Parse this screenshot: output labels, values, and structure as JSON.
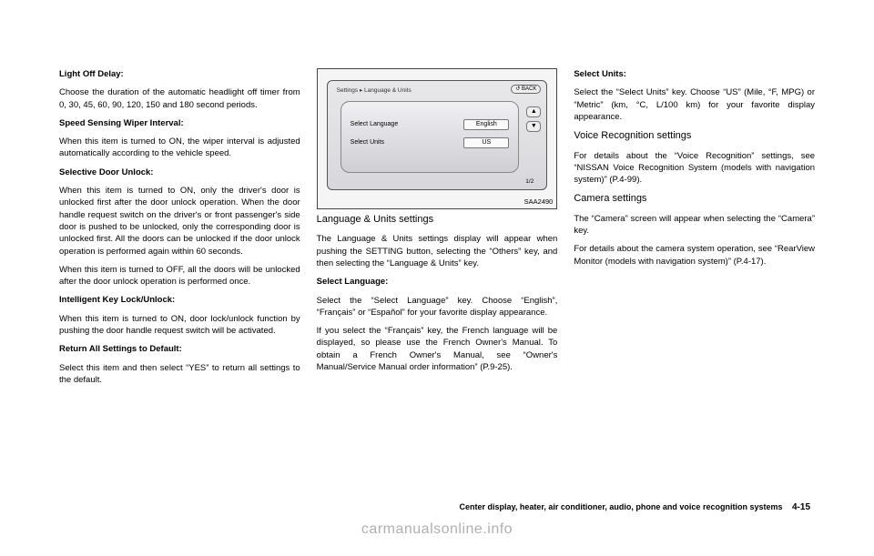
{
  "col1": {
    "h1": "Light Off Delay:",
    "p1": "Choose the duration of the automatic headlight off timer from 0, 30, 45, 60, 90, 120, 150 and 180 second periods.",
    "h2": "Speed Sensing Wiper Interval:",
    "p2": "When this item is turned to ON, the wiper interval is adjusted automatically according to the vehicle speed.",
    "h3": "Selective Door Unlock:",
    "p3": "When this item is turned to ON, only the driver's door is unlocked first after the door unlock operation. When the door handle request switch on the driver's or front passenger's side door is pushed to be unlocked, only the corresponding door is unlocked first. All the doors can be unlocked if the door unlock operation is performed again within 60 seconds.",
    "p4": "When this item is turned to OFF, all the doors will be unlocked after the door unlock operation is performed once.",
    "h4": "Intelligent Key Lock/Unlock:",
    "p5": "When this item is turned to ON, door lock/unlock function by pushing the door handle request switch will be activated.",
    "h5": "Return All Settings to Default:",
    "p6": "Select this item and then select “YES” to return all settings to the default."
  },
  "fig": {
    "crumb": "Settings ▸ Language & Units",
    "back": "↺ BACK",
    "row1_label": "Select Language",
    "row1_value": "English",
    "row2_label": "Select Units",
    "row2_value": "US",
    "up": "▲",
    "down": "▼",
    "page": "1/2",
    "id": "SAA2490"
  },
  "col2": {
    "h1": "Language & Units settings",
    "p1": "The Language & Units settings display will appear when pushing the SETTING button, selecting the “Others” key, and then selecting the “Language & Units” key.",
    "h2": "Select Language:",
    "p2": "Select the “Select Language” key. Choose “English”, “Français” or “Español” for your favorite display appearance.",
    "p3": "If you select the “Français” key, the French language will be displayed, so please use the French Owner's Manual. To obtain a French Owner's Manual, see “Owner's Manual/Service Manual order information” (P.9-25)."
  },
  "col3": {
    "h1": "Select Units:",
    "p1": "Select the “Select Units” key. Choose “US” (Mile, °F, MPG) or “Metric” (km, °C, L/100 km) for your favorite display appearance.",
    "h2": "Voice Recognition settings",
    "p2": "For details about the “Voice Recognition” settings, see “NISSAN Voice Recognition System (models with navigation system)” (P.4-99).",
    "h3": "Camera settings",
    "p3": "The “Camera” screen will appear when selecting the “Camera” key.",
    "p4": "For details about the camera system operation, see “RearView Monitor (models with navigation system)” (P.4-17)."
  },
  "footer": {
    "text": "Center display, heater, air conditioner, audio, phone and voice recognition systems",
    "page": "4-15"
  },
  "watermark": "carmanualsonline.info"
}
